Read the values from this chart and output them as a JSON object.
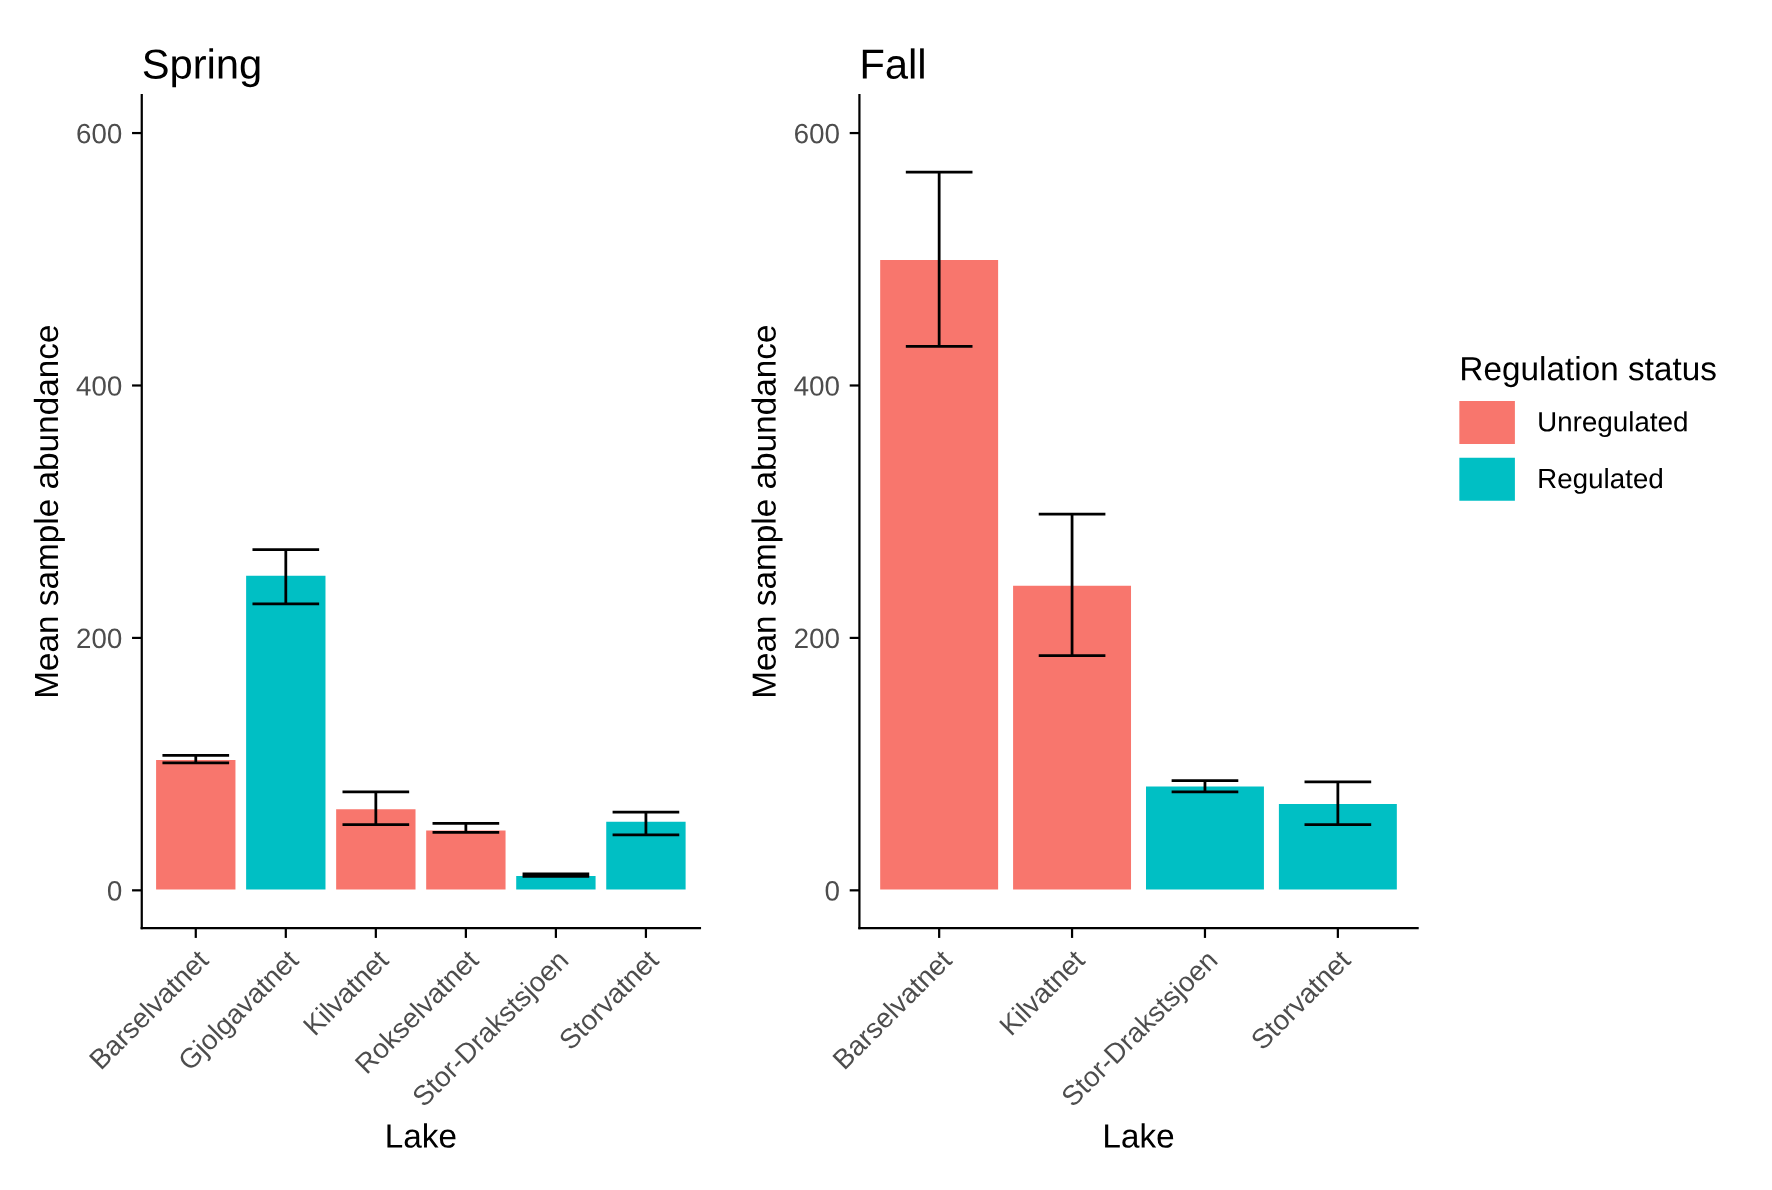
{
  "chart_data": [
    {
      "type": "bar",
      "title": "Spring",
      "xlabel": "Lake",
      "ylabel": "Mean sample abundance",
      "categories": [
        "Barselvatnet",
        "Gjolgavatnet",
        "Kilvatnet",
        "Rokselvatnet",
        "Stor-Drakstsjoen",
        "Storvatnet"
      ],
      "series": [
        {
          "color": "#f8766d",
          "values": [
            104,
            null,
            65,
            48,
            null,
            null
          ],
          "errors": [
            [
              101,
              107
            ],
            null,
            [
              52,
              78
            ],
            [
              46,
              53
            ],
            null,
            null
          ]
        },
        {
          "color": "#00bfc4",
          "values": [
            null,
            250,
            null,
            null,
            12,
            55
          ],
          "errors": [
            null,
            [
              227,
              270
            ],
            null,
            null,
            [
              11,
              13
            ],
            [
              44,
              62
            ]
          ]
        }
      ],
      "ylim": [
        -30,
        630
      ],
      "yticks": [
        0,
        200,
        400,
        600
      ],
      "grid": false
    },
    {
      "type": "bar",
      "title": "Fall",
      "xlabel": "Lake",
      "ylabel": "Mean sample abundance",
      "categories": [
        "Barselvatnet",
        "Kilvatnet",
        "Stor-Drakstsjoen",
        "Storvatnet"
      ],
      "series": [
        {
          "name": "Unregulated",
          "color": "#f8766d",
          "values": [
            500,
            242,
            null,
            null
          ],
          "errors": [
            [
              431,
              569
            ],
            [
              186,
              298
            ],
            null,
            null
          ]
        },
        {
          "name": "Regulated",
          "color": "#00bfc4",
          "values": [
            null,
            null,
            83,
            69
          ],
          "errors": [
            null,
            null,
            [
              78,
              87
            ],
            [
              52,
              86
            ]
          ]
        }
      ],
      "ylim": [
        -30,
        630
      ],
      "yticks": [
        0,
        200,
        400,
        600
      ],
      "grid": false,
      "legend": "right",
      "legend_title": "Regulation status"
    }
  ]
}
